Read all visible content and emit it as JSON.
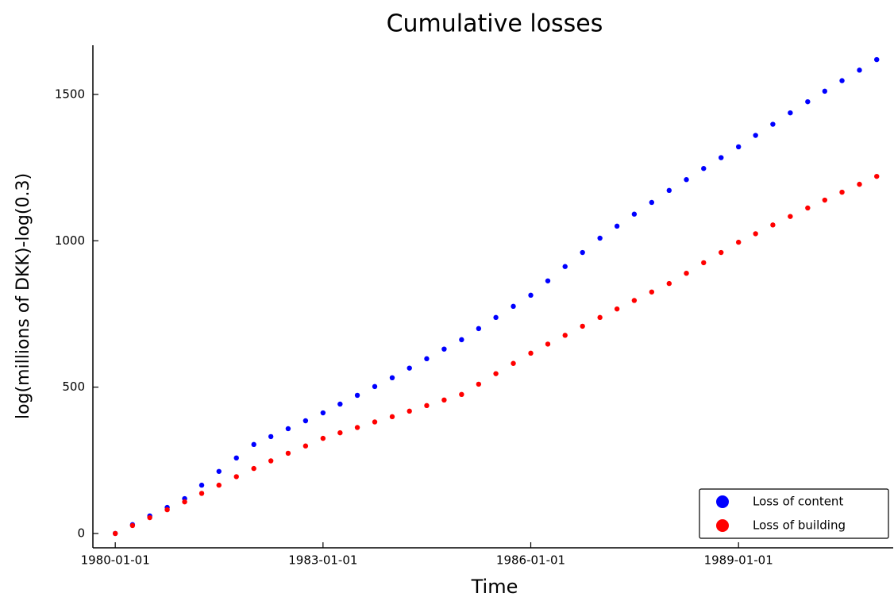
{
  "chart_data": {
    "type": "scatter",
    "title": "Cumulative losses",
    "x_label": "Time",
    "y_label": "log(millions of DKK)-log(0.3)",
    "x": [
      "1980-01-01",
      "1980-04-01",
      "1980-07-01",
      "1980-10-01",
      "1981-01-01",
      "1981-04-01",
      "1981-07-01",
      "1981-10-01",
      "1982-01-01",
      "1982-04-01",
      "1982-07-01",
      "1982-10-01",
      "1983-01-01",
      "1983-04-01",
      "1983-07-01",
      "1983-10-01",
      "1984-01-01",
      "1984-04-01",
      "1984-07-01",
      "1984-10-01",
      "1985-01-01",
      "1985-04-01",
      "1985-07-01",
      "1985-10-01",
      "1986-01-01",
      "1986-04-01",
      "1986-07-01",
      "1986-10-01",
      "1987-01-01",
      "1987-04-01",
      "1987-07-01",
      "1987-10-01",
      "1988-01-01",
      "1988-04-01",
      "1988-07-01",
      "1988-10-01",
      "1989-01-01",
      "1989-04-01",
      "1989-07-01",
      "1989-10-01",
      "1990-01-01",
      "1990-04-01",
      "1990-07-01",
      "1990-10-01",
      "1990-12-31"
    ],
    "series": [
      {
        "name": "Loss of content",
        "color": "#0000ff",
        "values": [
          0,
          30,
          60,
          89,
          119,
          165,
          212,
          258,
          304,
          331,
          358,
          385,
          412,
          442,
          472,
          502,
          532,
          565,
          597,
          630,
          662,
          700,
          738,
          776,
          814,
          863,
          912,
          960,
          1009,
          1050,
          1091,
          1131,
          1172,
          1209,
          1247,
          1284,
          1321,
          1360,
          1398,
          1437,
          1475,
          1511,
          1547,
          1583,
          1619
        ]
      },
      {
        "name": "Loss of building",
        "color": "#ff0000",
        "values": [
          0,
          27,
          54,
          81,
          108,
          137,
          165,
          194,
          222,
          248,
          274,
          299,
          325,
          344,
          362,
          381,
          399,
          418,
          437,
          456,
          475,
          510,
          546,
          581,
          616,
          647,
          677,
          708,
          738,
          767,
          796,
          825,
          854,
          889,
          925,
          960,
          995,
          1024,
          1054,
          1083,
          1112,
          1139,
          1166,
          1193,
          1220
        ]
      }
    ],
    "xlim": [
      "1979-09-05",
      "1991-03-28"
    ],
    "xticks": [
      "1980-01-01",
      "1983-01-01",
      "1986-01-01",
      "1989-01-01"
    ],
    "ylim": [
      -49,
      1668
    ],
    "yticks": [
      0,
      500,
      1000,
      1500
    ],
    "grid": false,
    "legend": "bottom right"
  }
}
